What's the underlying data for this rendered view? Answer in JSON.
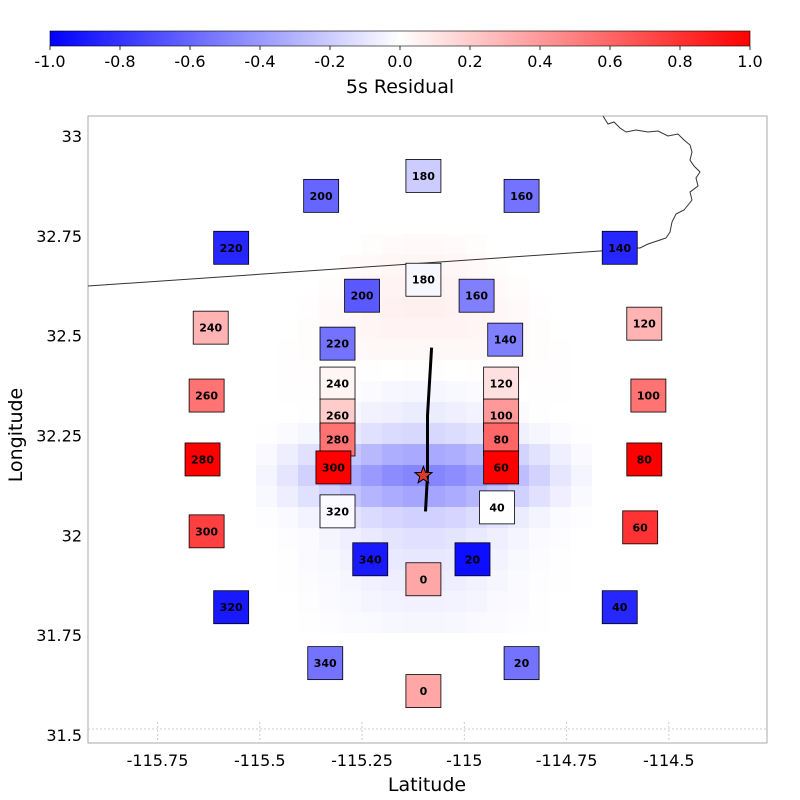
{
  "chart_data": {
    "type": "scatter",
    "title": "",
    "xlabel": "Latitude",
    "ylabel": "Longitude",
    "xlim": [
      -115.92,
      -114.26
    ],
    "ylim": [
      31.48,
      33.05
    ],
    "xticks": [
      -115.75,
      -115.5,
      -115.25,
      -115,
      -114.75,
      -114.5
    ],
    "xtick_labels": [
      "-115.75",
      "-115.5",
      "-115.25",
      "-115",
      "-114.75",
      "-114.5"
    ],
    "yticks": [
      31.5,
      31.75,
      32,
      32.25,
      32.5,
      32.75,
      33
    ],
    "ytick_labels": [
      "31.5",
      "31.75",
      "32",
      "32.25",
      "32.5",
      "32.75",
      "33"
    ],
    "colorbar": {
      "label": "5s Residual",
      "min": -1.0,
      "max": 1.0,
      "ticks": [
        -1.0,
        -0.8,
        -0.6,
        -0.4,
        -0.2,
        0.0,
        0.2,
        0.4,
        0.6,
        0.8,
        1.0
      ],
      "tick_labels": [
        "-1.0",
        "-0.8",
        "-0.6",
        "-0.4",
        "-0.2",
        "0.0",
        "0.2",
        "0.4",
        "0.6",
        "0.8",
        "1.0"
      ],
      "colors": [
        "#0000ff",
        "#ffffff",
        "#ff0000"
      ]
    },
    "epicenter": {
      "lon": -115.1,
      "lat": 32.15
    },
    "rupture": [
      [
        -115.08,
        32.47
      ],
      [
        -115.09,
        32.3
      ],
      [
        -115.09,
        32.15
      ],
      [
        -115.095,
        32.06
      ]
    ],
    "stations": [
      {
        "label": "180",
        "lon": -115.1,
        "lat": 32.9,
        "residual": -0.2
      },
      {
        "label": "200",
        "lon": -115.35,
        "lat": 32.85,
        "residual": -0.6
      },
      {
        "label": "160",
        "lon": -114.86,
        "lat": 32.85,
        "residual": -0.55
      },
      {
        "label": "220",
        "lon": -115.57,
        "lat": 32.72,
        "residual": -0.85
      },
      {
        "label": "140",
        "lon": -114.62,
        "lat": 32.72,
        "residual": -0.85
      },
      {
        "label": "180",
        "lon": -115.1,
        "lat": 32.64,
        "residual": -0.03
      },
      {
        "label": "200",
        "lon": -115.25,
        "lat": 32.6,
        "residual": -0.65
      },
      {
        "label": "160",
        "lon": -114.97,
        "lat": 32.6,
        "residual": -0.5
      },
      {
        "label": "240",
        "lon": -115.62,
        "lat": 32.52,
        "residual": 0.3
      },
      {
        "label": "120",
        "lon": -114.56,
        "lat": 32.53,
        "residual": 0.3
      },
      {
        "label": "220",
        "lon": -115.31,
        "lat": 32.48,
        "residual": -0.55
      },
      {
        "label": "140",
        "lon": -114.9,
        "lat": 32.49,
        "residual": -0.5
      },
      {
        "label": "240",
        "lon": -115.31,
        "lat": 32.38,
        "residual": 0.04
      },
      {
        "label": "120",
        "lon": -114.91,
        "lat": 32.38,
        "residual": 0.12
      },
      {
        "label": "260",
        "lon": -115.63,
        "lat": 32.35,
        "residual": 0.55
      },
      {
        "label": "100",
        "lon": -114.55,
        "lat": 32.35,
        "residual": 0.55
      },
      {
        "label": "260",
        "lon": -115.31,
        "lat": 32.3,
        "residual": 0.2
      },
      {
        "label": "100",
        "lon": -114.91,
        "lat": 32.3,
        "residual": 0.4
      },
      {
        "label": "280",
        "lon": -115.31,
        "lat": 32.24,
        "residual": 0.55
      },
      {
        "label": "80",
        "lon": -114.91,
        "lat": 32.24,
        "residual": 0.6
      },
      {
        "label": "280",
        "lon": -115.64,
        "lat": 32.19,
        "residual": 1.0
      },
      {
        "label": "80",
        "lon": -114.56,
        "lat": 32.19,
        "residual": 1.0
      },
      {
        "label": "300",
        "lon": -115.32,
        "lat": 32.17,
        "residual": 1.0
      },
      {
        "label": "60",
        "lon": -114.91,
        "lat": 32.17,
        "residual": 1.0
      },
      {
        "label": "320",
        "lon": -115.31,
        "lat": 32.06,
        "residual": -0.02
      },
      {
        "label": "40",
        "lon": -114.92,
        "lat": 32.07,
        "residual": 0.0
      },
      {
        "label": "300",
        "lon": -115.63,
        "lat": 32.01,
        "residual": 0.75
      },
      {
        "label": "60",
        "lon": -114.57,
        "lat": 32.02,
        "residual": 0.8
      },
      {
        "label": "340",
        "lon": -115.23,
        "lat": 31.94,
        "residual": -0.9
      },
      {
        "label": "20",
        "lon": -114.98,
        "lat": 31.94,
        "residual": -0.95
      },
      {
        "label": "0",
        "lon": -115.1,
        "lat": 31.89,
        "residual": 0.35
      },
      {
        "label": "320",
        "lon": -115.57,
        "lat": 31.82,
        "residual": -0.9
      },
      {
        "label": "40",
        "lon": -114.62,
        "lat": 31.82,
        "residual": -0.85
      },
      {
        "label": "340",
        "lon": -115.34,
        "lat": 31.68,
        "residual": -0.55
      },
      {
        "label": "20",
        "lon": -114.86,
        "lat": 31.68,
        "residual": -0.55
      },
      {
        "label": "0",
        "lon": -115.1,
        "lat": 31.61,
        "residual": 0.35
      }
    ]
  }
}
